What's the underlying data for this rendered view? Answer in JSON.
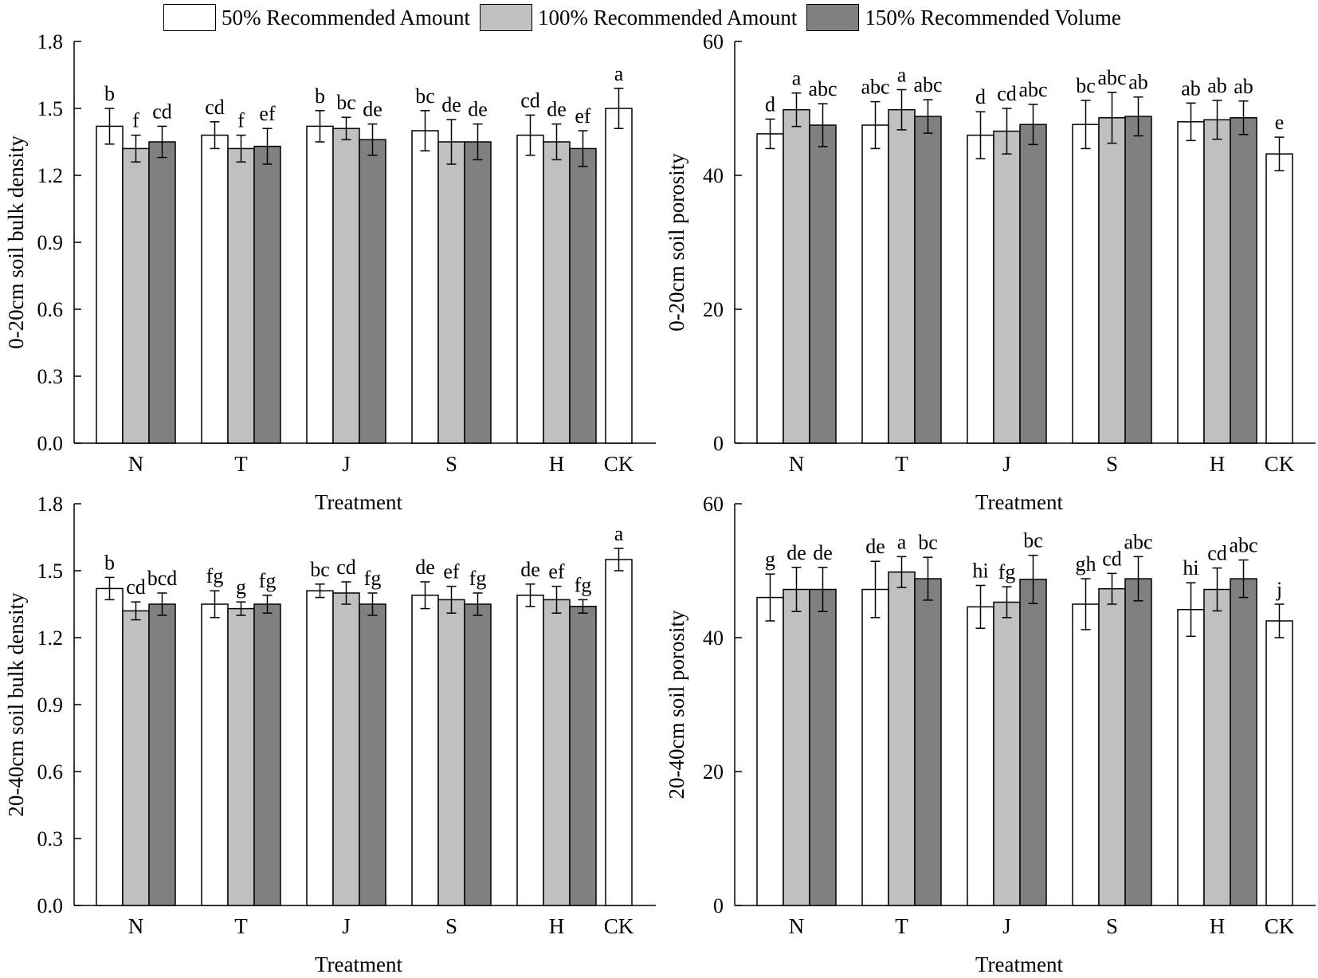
{
  "legend": {
    "items": [
      {
        "label": "50% Recommended Amount",
        "color": "#ffffff"
      },
      {
        "label": "100% Recommended Amount",
        "color": "#c0c0c0"
      },
      {
        "label": "150% Recommended Volume",
        "color": "#808080"
      }
    ]
  },
  "chart_data": [
    {
      "type": "bar",
      "title": "",
      "xlabel": "Treatment",
      "ylabel": "0-20cm soil bulk density",
      "ylim": [
        0,
        1.8
      ],
      "yticks": [
        "0.0",
        "0.3",
        "0.6",
        "0.9",
        "1.2",
        "1.5",
        "1.8"
      ],
      "categories": [
        "N",
        "T",
        "J",
        "S",
        "H",
        "CK"
      ],
      "series": [
        {
          "name": "50% Recommended Amount",
          "values": [
            1.42,
            1.38,
            1.42,
            1.4,
            1.38,
            1.5
          ],
          "errors": [
            0.08,
            0.06,
            0.07,
            0.09,
            0.09,
            0.09
          ],
          "letters": [
            "b",
            "cd",
            "b",
            "bc",
            "cd",
            "a"
          ]
        },
        {
          "name": "100% Recommended Amount",
          "values": [
            1.32,
            1.32,
            1.41,
            1.35,
            1.35,
            null
          ],
          "errors": [
            0.06,
            0.06,
            0.05,
            0.1,
            0.08,
            null
          ],
          "letters": [
            "f",
            "f",
            "bc",
            "de",
            "de",
            null
          ]
        },
        {
          "name": "150% Recommended Volume",
          "values": [
            1.35,
            1.33,
            1.36,
            1.35,
            1.32,
            null
          ],
          "errors": [
            0.07,
            0.08,
            0.07,
            0.08,
            0.08,
            null
          ],
          "letters": [
            "cd",
            "ef",
            "de",
            "de",
            "ef",
            null
          ]
        }
      ]
    },
    {
      "type": "bar",
      "title": "",
      "xlabel": "Treatment",
      "ylabel": "0-20cm soil porosity",
      "ylim": [
        0,
        60
      ],
      "yticks": [
        "0",
        "20",
        "40",
        "60"
      ],
      "categories": [
        "N",
        "T",
        "J",
        "S",
        "H",
        "CK"
      ],
      "series": [
        {
          "name": "50% Recommended Amount",
          "values": [
            46.2,
            47.5,
            46.0,
            47.6,
            48.0,
            43.2
          ],
          "errors": [
            2.2,
            3.5,
            3.5,
            3.6,
            2.8,
            2.5
          ],
          "letters": [
            "d",
            "abc",
            "d",
            "bc",
            "ab",
            "e"
          ]
        },
        {
          "name": "100% Recommended Amount",
          "values": [
            49.8,
            49.8,
            46.6,
            48.6,
            48.3,
            null
          ],
          "errors": [
            2.5,
            3.0,
            3.4,
            3.8,
            2.9,
            null
          ],
          "letters": [
            "a",
            "a",
            "cd",
            "abc",
            "ab",
            null
          ]
        },
        {
          "name": "150% Recommended Volume",
          "values": [
            47.5,
            48.8,
            47.6,
            48.8,
            48.6,
            null
          ],
          "errors": [
            3.2,
            2.5,
            3.0,
            2.9,
            2.5,
            null
          ],
          "letters": [
            "abc",
            "abc",
            "abc",
            "ab",
            "ab",
            null
          ]
        }
      ]
    },
    {
      "type": "bar",
      "title": "",
      "xlabel": "Treatment",
      "ylabel": "20-40cm soil bulk density",
      "ylim": [
        0,
        1.8
      ],
      "yticks": [
        "0.0",
        "0.3",
        "0.6",
        "0.9",
        "1.2",
        "1.5",
        "1.8"
      ],
      "categories": [
        "N",
        "T",
        "J",
        "S",
        "H",
        "CK"
      ],
      "series": [
        {
          "name": "50% Recommended Amount",
          "values": [
            1.42,
            1.35,
            1.41,
            1.39,
            1.39,
            1.55
          ],
          "errors": [
            0.05,
            0.06,
            0.03,
            0.06,
            0.05,
            0.05
          ],
          "letters": [
            "b",
            "fg",
            "bc",
            "de",
            "de",
            "a"
          ]
        },
        {
          "name": "100% Recommended Amount",
          "values": [
            1.32,
            1.33,
            1.4,
            1.37,
            1.37,
            null
          ],
          "errors": [
            0.04,
            0.03,
            0.05,
            0.06,
            0.06,
            null
          ],
          "letters": [
            "cd",
            "g",
            "cd",
            "ef",
            "ef",
            null
          ]
        },
        {
          "name": "150% Recommended Volume",
          "values": [
            1.35,
            1.35,
            1.35,
            1.35,
            1.34,
            null
          ],
          "errors": [
            0.05,
            0.04,
            0.05,
            0.05,
            0.03,
            null
          ],
          "letters": [
            "bcd",
            "fg",
            "fg",
            "fg",
            "fg",
            null
          ]
        }
      ]
    },
    {
      "type": "bar",
      "title": "",
      "xlabel": "Treatment",
      "ylabel": "20-40cm soil porosity",
      "ylim": [
        0,
        60
      ],
      "yticks": [
        "0",
        "20",
        "40",
        "60"
      ],
      "categories": [
        "N",
        "T",
        "J",
        "S",
        "H",
        "CK"
      ],
      "series": [
        {
          "name": "50% Recommended Amount",
          "values": [
            46.0,
            47.2,
            44.6,
            45.0,
            44.2,
            42.5
          ],
          "errors": [
            3.5,
            4.2,
            3.2,
            3.8,
            4.0,
            2.5
          ],
          "letters": [
            "g",
            "de",
            "hi",
            "gh",
            "hi",
            "j"
          ]
        },
        {
          "name": "100% Recommended Amount",
          "values": [
            47.2,
            49.8,
            45.3,
            47.3,
            47.2,
            null
          ],
          "errors": [
            3.3,
            2.3,
            2.3,
            2.3,
            3.2,
            null
          ],
          "letters": [
            "de",
            "a",
            "fg",
            "cd",
            "cd",
            null
          ]
        },
        {
          "name": "150% Recommended Volume",
          "values": [
            47.2,
            48.8,
            48.7,
            48.8,
            48.8,
            null
          ],
          "errors": [
            3.3,
            3.2,
            3.6,
            3.3,
            2.8,
            null
          ],
          "letters": [
            "de",
            "bc",
            "bc",
            "abc",
            "abc",
            null
          ]
        }
      ]
    }
  ]
}
